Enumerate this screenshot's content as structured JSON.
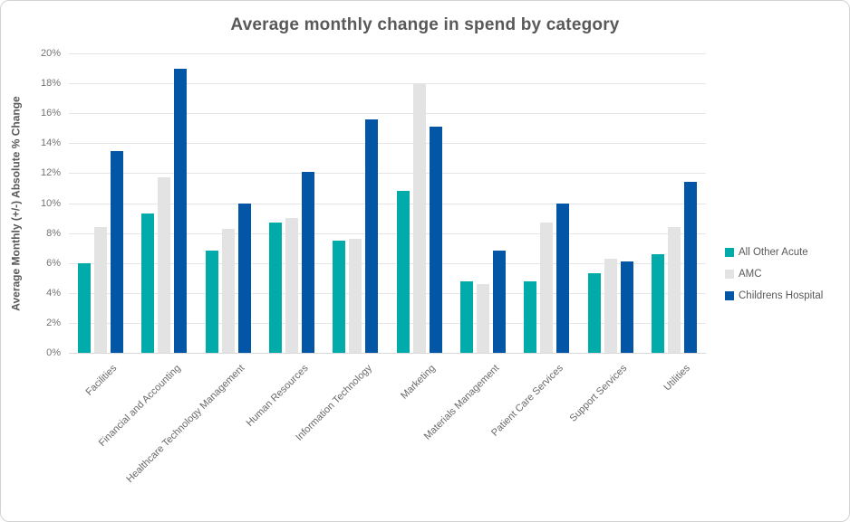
{
  "chart_data": {
    "type": "bar",
    "title": "Average monthly change in spend by category",
    "xlabel": "",
    "ylabel": "Average Monthly (+/-) Absolute % Change",
    "ylim": [
      0,
      20
    ],
    "ytick_step": 2,
    "ytick_labels": [
      "0%",
      "2%",
      "4%",
      "6%",
      "8%",
      "10%",
      "12%",
      "14%",
      "16%",
      "18%",
      "20%"
    ],
    "grid": "horizontal",
    "legend_position": "right",
    "categories": [
      "Facilities",
      "Financial and Accounting",
      "Healthcare Technology Management",
      "Human Resources",
      "Information Technology",
      "Marketing",
      "Materials Management",
      "Patient Care Services",
      "Support Services",
      "Utilities"
    ],
    "series": [
      {
        "name": "All Other Acute",
        "color": "#00aba9",
        "values": [
          6.0,
          9.3,
          6.8,
          8.7,
          7.5,
          10.8,
          4.8,
          4.8,
          5.3,
          6.6
        ]
      },
      {
        "name": "AMC",
        "color": "#e3e3e3",
        "values": [
          8.4,
          11.7,
          8.3,
          9.0,
          7.6,
          18.0,
          4.6,
          8.7,
          6.3,
          8.4
        ]
      },
      {
        "name": "Childrens Hospital",
        "color": "#0256a5",
        "values": [
          13.5,
          19.0,
          10.0,
          12.1,
          15.6,
          15.1,
          6.8,
          10.0,
          6.1,
          11.4
        ]
      }
    ]
  }
}
